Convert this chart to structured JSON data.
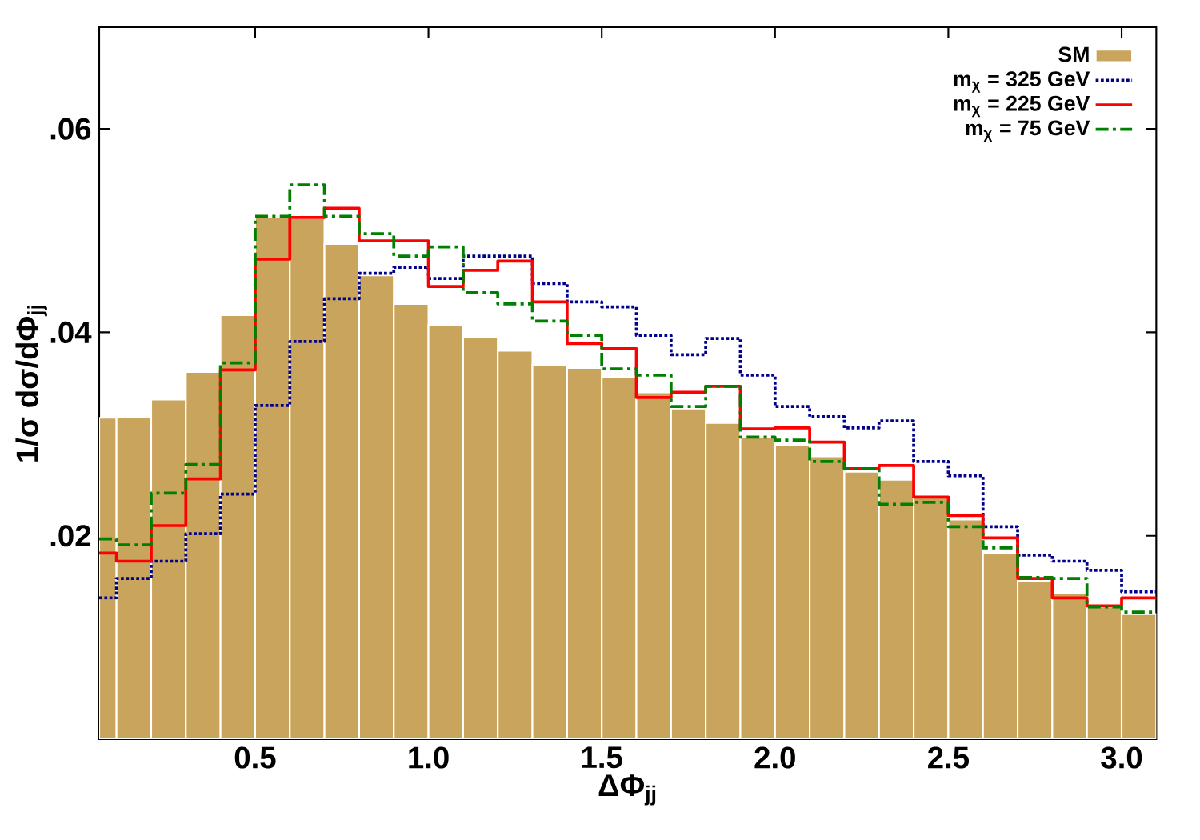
{
  "chart_data": {
    "type": "histogram",
    "xlabel": "ΔΦ$_{jj}$",
    "ylabel": "1/σ  dσ/dΦ$_{jj}$",
    "bins": [
      0.05,
      0.1,
      0.2,
      0.3,
      0.4,
      0.5,
      0.6,
      0.7,
      0.8,
      0.9,
      1.0,
      1.1,
      1.2,
      1.3,
      1.4,
      1.5,
      1.6,
      1.7,
      1.8,
      1.9,
      2.0,
      2.1,
      2.2,
      2.3,
      2.4,
      2.5,
      2.6,
      2.7,
      2.8,
      2.9,
      3.0,
      3.1
    ],
    "xlim": [
      0.05,
      3.1
    ],
    "ylim": [
      0,
      0.07
    ],
    "xticks": [
      {
        "value": 0.5,
        "label": "0.5"
      },
      {
        "value": 1.0,
        "label": "1.0"
      },
      {
        "value": 1.5,
        "label": "1.5"
      },
      {
        "value": 2.0,
        "label": "2.0"
      },
      {
        "value": 2.5,
        "label": "2.5"
      },
      {
        "value": 3.0,
        "label": "3.0"
      }
    ],
    "yticks": [
      {
        "value": 0.02,
        "label": ".02"
      },
      {
        "value": 0.04,
        "label": ".04"
      },
      {
        "value": 0.06,
        "label": ".06"
      }
    ],
    "legend": "top right",
    "series": [
      {
        "name": "SM",
        "color": "#c9a45c",
        "values": [
          0.0316,
          0.0317,
          0.0334,
          0.0361,
          0.0417,
          0.0513,
          0.0512,
          0.0487,
          0.0456,
          0.0428,
          0.0407,
          0.0395,
          0.0382,
          0.0368,
          0.0365,
          0.0356,
          0.0341,
          0.0325,
          0.0311,
          0.0297,
          0.0289,
          0.0278,
          0.0263,
          0.0255,
          0.0239,
          0.0216,
          0.0183,
          0.0155,
          0.0144,
          0.013,
          0.0123
        ]
      },
      {
        "name": "m$_{χ}$ = 325 GeV",
        "line_style": "dotted",
        "color": "#00008b",
        "values": [
          0.0139,
          0.0158,
          0.0175,
          0.0202,
          0.0241,
          0.0328,
          0.0391,
          0.0433,
          0.0458,
          0.0464,
          0.0453,
          0.0475,
          0.0475,
          0.0448,
          0.043,
          0.0425,
          0.0397,
          0.0378,
          0.0394,
          0.0358,
          0.0327,
          0.0317,
          0.0306,
          0.0313,
          0.0273,
          0.0259,
          0.0209,
          0.0181,
          0.0175,
          0.0166,
          0.0145
        ]
      },
      {
        "name": "m$_{χ}$ = 225 GeV",
        "line_style": "solid",
        "color": "#ff0000",
        "values": [
          0.0183,
          0.0175,
          0.021,
          0.0256,
          0.0363,
          0.0472,
          0.0513,
          0.0522,
          0.049,
          0.049,
          0.0445,
          0.0461,
          0.047,
          0.043,
          0.0389,
          0.0384,
          0.0336,
          0.0341,
          0.0347,
          0.0305,
          0.0306,
          0.0292,
          0.0266,
          0.0269,
          0.0238,
          0.022,
          0.0198,
          0.0158,
          0.0139,
          0.0131,
          0.0139
        ]
      },
      {
        "name": "m$_{χ}$ = 75 GeV",
        "line_style": "dashdot",
        "color": "#008000",
        "values": [
          0.0197,
          0.0191,
          0.0242,
          0.027,
          0.037,
          0.0514,
          0.0545,
          0.0514,
          0.0497,
          0.0475,
          0.0484,
          0.0439,
          0.0428,
          0.0411,
          0.0397,
          0.0364,
          0.0358,
          0.0327,
          0.0347,
          0.0297,
          0.0294,
          0.0273,
          0.0266,
          0.0231,
          0.0233,
          0.0209,
          0.0188,
          0.0159,
          0.0158,
          0.013,
          0.0125
        ]
      }
    ]
  }
}
